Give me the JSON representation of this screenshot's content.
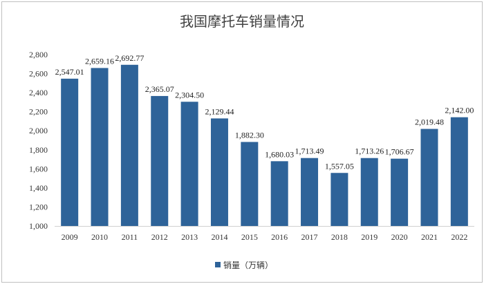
{
  "chart_data": {
    "type": "bar",
    "title": "我国摩托车销量情况",
    "categories": [
      "2009",
      "2010",
      "2011",
      "2012",
      "2013",
      "2014",
      "2015",
      "2016",
      "2017",
      "2018",
      "2019",
      "2020",
      "2021",
      "2022"
    ],
    "series": [
      {
        "name": "销量（万辆）",
        "values": [
          2547.01,
          2659.16,
          2692.77,
          2365.07,
          2304.5,
          2129.44,
          1882.3,
          1680.03,
          1713.49,
          1557.05,
          1713.26,
          1706.67,
          2019.48,
          2142.0
        ],
        "labels": [
          "2,547.01",
          "2,659.16",
          "2,692.77",
          "2,365.07",
          "2,304.50",
          "2,129.44",
          "1,882.30",
          "1,680.03",
          "1,713.49",
          "1,557.05",
          "1,713.26",
          "1,706.67",
          "2,019.48",
          "2,142.00"
        ],
        "color": "#2e6399"
      }
    ],
    "yticks": [
      "1,000",
      "1,200",
      "1,400",
      "1,600",
      "1,800",
      "2,000",
      "2,200",
      "2,400",
      "2,600",
      "2,800"
    ],
    "ylim": [
      1000,
      2800
    ],
    "xlabel": "",
    "ylabel": "",
    "grid": false,
    "legend_position": "bottom"
  }
}
